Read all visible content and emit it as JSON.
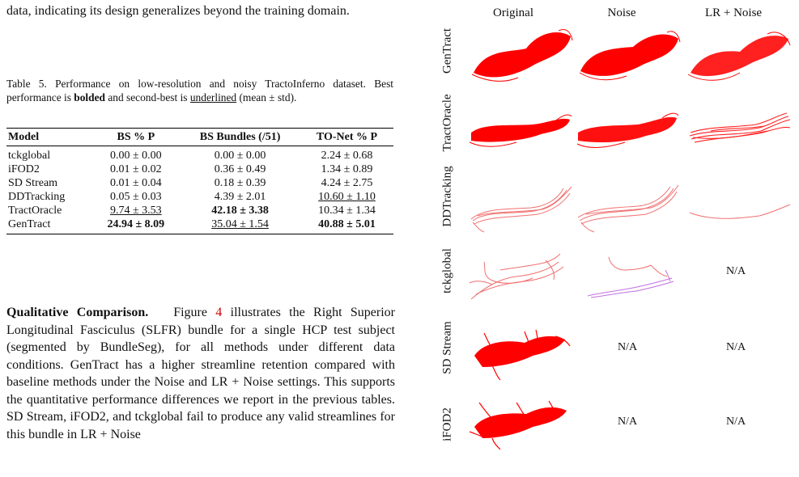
{
  "left": {
    "intro_text": "data, indicating its design generalizes beyond the training domain.",
    "caption_prefix": "Table 5. Performance on low-resolution and noisy TractoInferno dataset. Best performance is ",
    "caption_bold": "bolded",
    "caption_mid": " and second-best is ",
    "caption_underlined": "underlined",
    "caption_suffix": " (mean ± std).",
    "table": {
      "headers": [
        "Model",
        "BS % P",
        "BS Bundles (/51)",
        "TO-Net % P"
      ],
      "rows": [
        [
          "tckglobal",
          "0.00 ± 0.00",
          "0.00 ± 0.00",
          "2.24 ± 0.68"
        ],
        [
          "iFOD2",
          "0.01 ± 0.02",
          "0.36 ± 0.49",
          "1.34 ± 0.89"
        ],
        [
          "SD Stream",
          "0.01 ± 0.04",
          "0.18 ± 0.39",
          "4.24 ± 2.75"
        ],
        [
          "DDTracking",
          "0.05 ± 0.03",
          "4.39 ± 2.01",
          "10.60 ± 1.10"
        ],
        [
          "TractOracle",
          "9.74 ± 3.53",
          "42.18 ± 3.38",
          "10.34 ± 1.34"
        ],
        [
          "GenTract",
          "24.94 ± 8.09",
          "35.04 ± 1.54",
          "40.88 ± 5.01"
        ]
      ]
    },
    "para_lead": "Qualitative Comparison.",
    "para_pre_ref": "Figure ",
    "para_ref": "4",
    "para_body": " illustrates the Right Superior Longitudinal Fasciculus (SLFR) bundle for a single HCP test subject (segmented by BundleSeg), for all methods under different data conditions. GenTract has a higher streamline retention compared with baseline methods under the Noise and LR + Noise settings. This supports the quantitative performance differences we report in the previous tables. SD Stream, iFOD2, and tckglobal fail to produce any valid streamlines for this bundle in LR + Noise"
  },
  "figure": {
    "columns": [
      "Original",
      "Noise",
      "LR + Noise"
    ],
    "rows": [
      "GenTract",
      "TractOracle",
      "DDTracking",
      "tckglobal",
      "SD Stream",
      "iFOD2"
    ],
    "na_label": "N/A",
    "colors": {
      "dense": "#ff0000",
      "sparse": "#f07070",
      "purple": "#c070e0"
    }
  }
}
